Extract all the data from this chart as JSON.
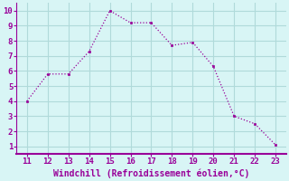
{
  "x": [
    11,
    12,
    13,
    14,
    15,
    16,
    17,
    18,
    19,
    20,
    21,
    22,
    23
  ],
  "y": [
    4.0,
    5.8,
    5.8,
    7.3,
    10.0,
    9.2,
    9.2,
    7.7,
    7.9,
    6.3,
    3.0,
    2.5,
    1.1
  ],
  "line_color": "#990099",
  "marker_color": "#990099",
  "background_color": "#d8f5f5",
  "grid_color": "#b0dada",
  "xlabel": "Windchill (Refroidissement éolien,°C)",
  "xlabel_color": "#990099",
  "tick_color": "#990099",
  "spine_color": "#990099",
  "xlim": [
    10.5,
    23.5
  ],
  "ylim": [
    0.5,
    10.5
  ],
  "xticks": [
    11,
    12,
    13,
    14,
    15,
    16,
    17,
    18,
    19,
    20,
    21,
    22,
    23
  ],
  "yticks": [
    1,
    2,
    3,
    4,
    5,
    6,
    7,
    8,
    9,
    10
  ],
  "tick_fontsize": 6.5,
  "xlabel_fontsize": 7.0
}
